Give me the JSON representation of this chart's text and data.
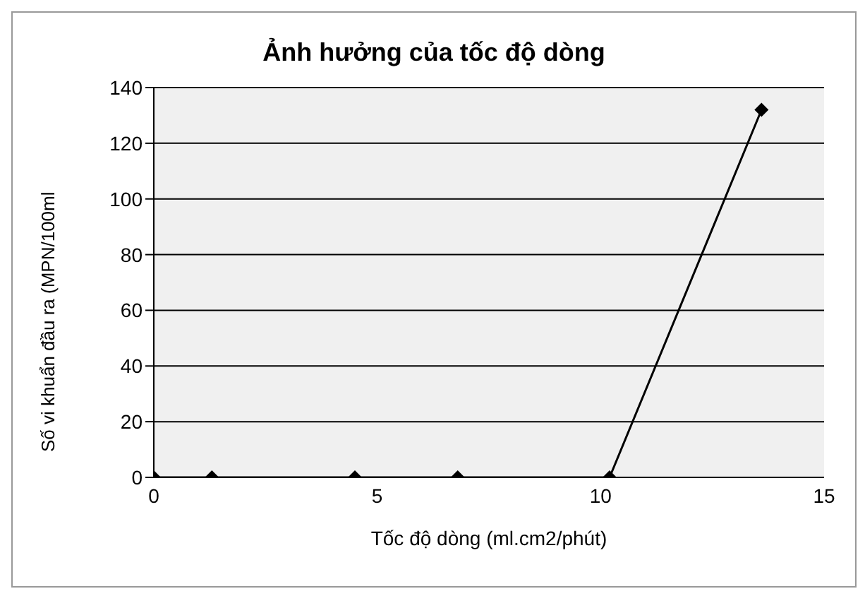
{
  "chart_data": {
    "type": "line",
    "title": "Ảnh hưởng của tốc độ dòng",
    "xlabel": "Tốc độ dòng (ml.cm2/phút)",
    "ylabel": "Số vi khuẩn đầu ra (MPN/100ml",
    "x": [
      0,
      1.3,
      4.5,
      6.8,
      10.2,
      13.6
    ],
    "series": [
      {
        "color": "#000000",
        "values": [
          0,
          0,
          0,
          0,
          0,
          132
        ]
      }
    ],
    "xlim": [
      0,
      15
    ],
    "xticks": [
      0,
      5,
      10,
      15
    ],
    "ylim": [
      0,
      140
    ],
    "yticks": [
      0,
      20,
      40,
      60,
      80,
      100,
      120,
      140
    ],
    "grid": "y",
    "marker": "diamond",
    "line_style": "solid",
    "legend": false
  }
}
